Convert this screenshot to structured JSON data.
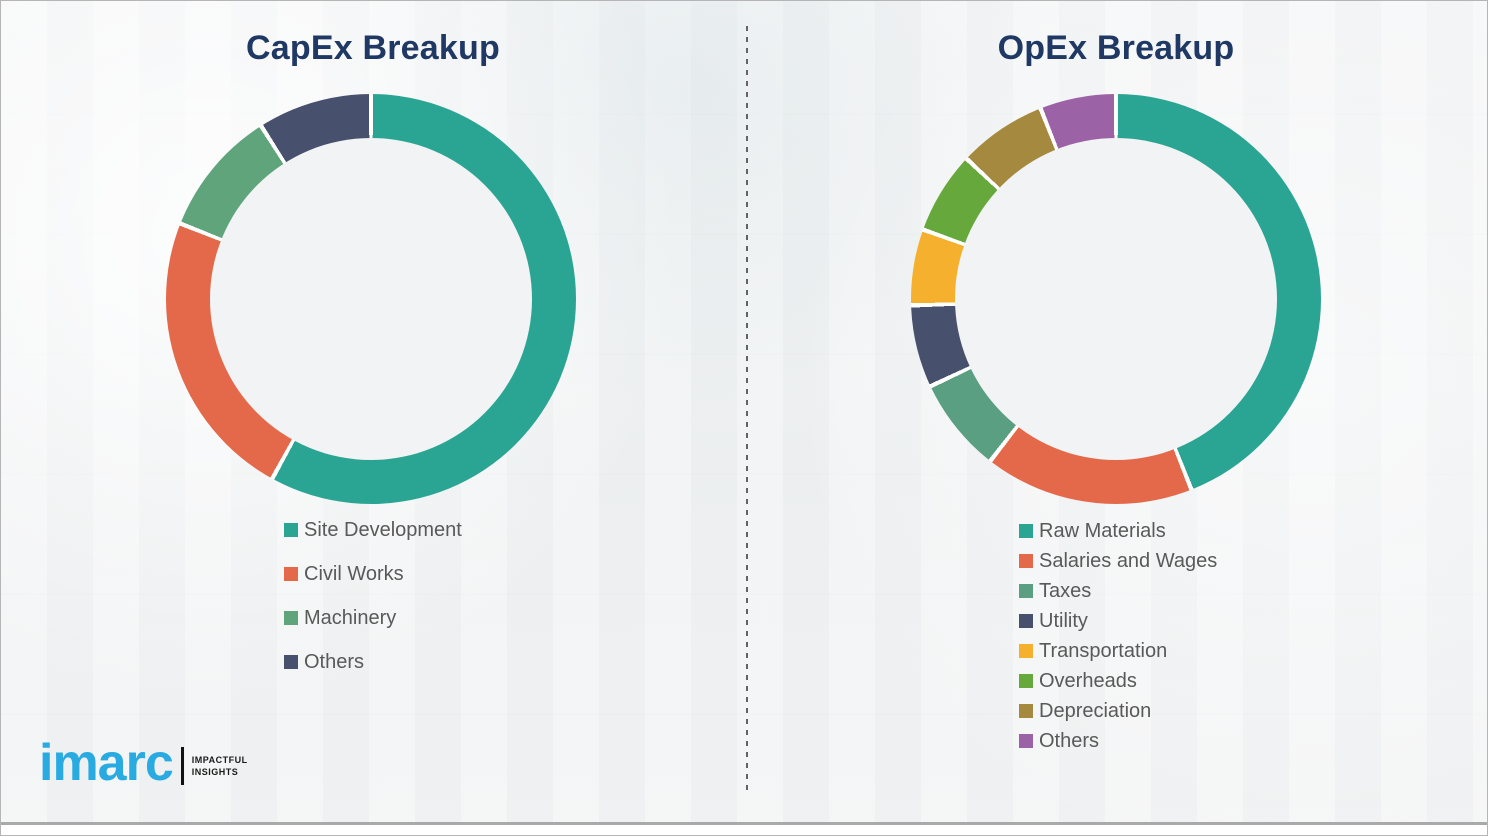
{
  "page": {
    "background_color": "#f2f3f4",
    "title_color": "#1f3864",
    "legend_text_color": "#595959",
    "divider_style": "vertical-dashed",
    "divider_color": "#636363",
    "bottom_line_color": "#a9a9a9"
  },
  "logo": {
    "brand": "imarc",
    "brand_color": "#29abe2",
    "tagline_line1": "IMPACTFUL",
    "tagline_line2": "INSIGHTS"
  },
  "chart_data": [
    {
      "type": "pie",
      "subtype": "donut",
      "title": "CapEx Breakup",
      "categories": [
        "Site Development",
        "Civil Works",
        "Machinery",
        "Others"
      ],
      "values": [
        58,
        23,
        10,
        9
      ],
      "colors": [
        "#2ba593",
        "#e4694b",
        "#60a47c",
        "#47506d"
      ],
      "start_angle_deg": 0,
      "direction": "clockwise",
      "data_labels": "none",
      "legend_position": "below-left"
    },
    {
      "type": "pie",
      "subtype": "donut",
      "title": "OpEx Breakup",
      "categories": [
        "Raw Materials",
        "Salaries and Wages",
        "Taxes",
        "Utility",
        "Transportation",
        "Overheads",
        "Depreciation",
        "Others"
      ],
      "values": [
        44,
        16.5,
        7.5,
        6.5,
        6,
        6.5,
        7,
        6
      ],
      "colors": [
        "#2ba593",
        "#e4694b",
        "#5b9f82",
        "#47506d",
        "#f5b12d",
        "#67a83d",
        "#a5893e",
        "#9b63a5"
      ],
      "start_angle_deg": 0,
      "direction": "clockwise",
      "data_labels": "none",
      "legend_position": "below-left"
    }
  ]
}
